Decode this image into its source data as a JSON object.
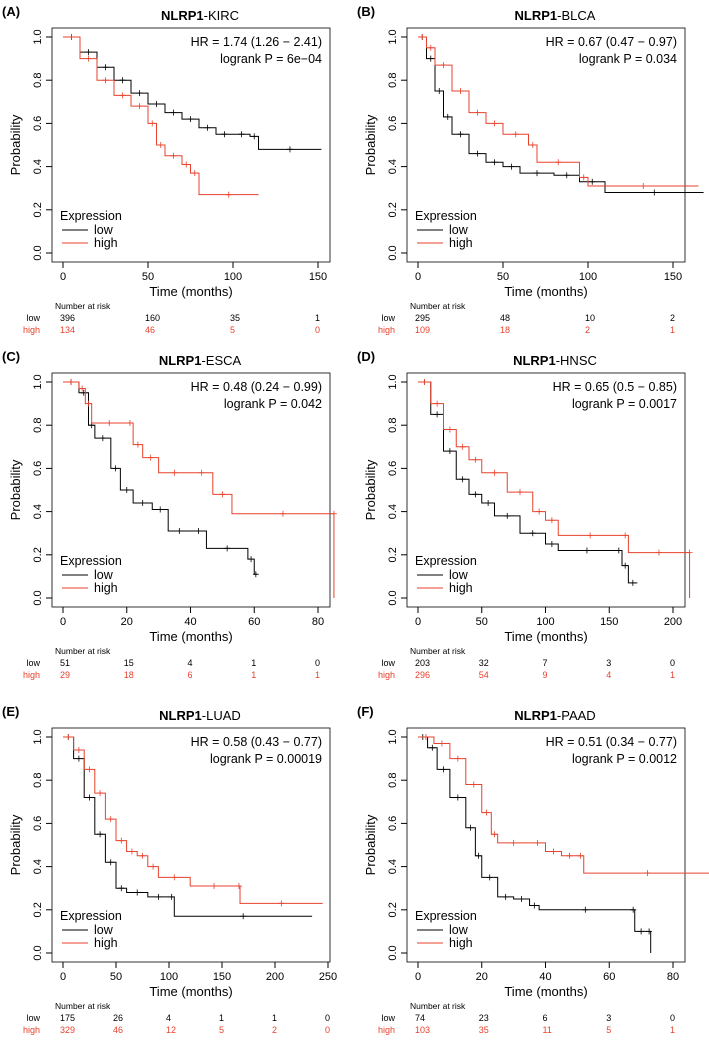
{
  "colors": {
    "low": "#000000",
    "high": "#e8412c"
  },
  "chart_data": [
    {
      "type": "line",
      "panel": "(A)",
      "title_gene": "NLRP1",
      "title_suffix": "-KIRC",
      "hr": "HR = 1.74 (1.26 − 2.41)",
      "p": "logrank P = 6e−04",
      "xlabel": "Time (months)",
      "ylabel": "Probability",
      "xlim": [
        0,
        150
      ],
      "ylim": [
        0,
        1
      ],
      "xticks": [
        0,
        50,
        100,
        150
      ],
      "yticks": [
        "0.0",
        "0.2",
        "0.4",
        "0.6",
        "0.8",
        "1.0"
      ],
      "legend_title": "Expression",
      "legend": [
        "low",
        "high"
      ],
      "risk_title": "Number at risk",
      "risk_times": [
        0,
        50,
        100,
        150
      ],
      "risk_low": [
        396,
        160,
        35,
        1
      ],
      "risk_high": [
        134,
        46,
        5,
        0
      ],
      "series": [
        {
          "name": "low",
          "x": [
            0,
            10,
            20,
            30,
            40,
            50,
            60,
            70,
            80,
            90,
            100,
            110,
            115,
            152
          ],
          "y": [
            1,
            0.93,
            0.86,
            0.8,
            0.74,
            0.69,
            0.65,
            0.62,
            0.58,
            0.55,
            0.55,
            0.54,
            0.48,
            0.48
          ]
        },
        {
          "name": "high",
          "x": [
            0,
            10,
            20,
            30,
            40,
            50,
            55,
            60,
            70,
            75,
            80,
            115
          ],
          "y": [
            1,
            0.9,
            0.8,
            0.73,
            0.68,
            0.6,
            0.5,
            0.45,
            0.41,
            0.37,
            0.27,
            0.27
          ]
        }
      ]
    },
    {
      "type": "line",
      "panel": "(B)",
      "title_gene": "NLRP1",
      "title_suffix": "-BLCA",
      "hr": "HR = 0.67 (0.47 − 0.97)",
      "p": "logrank P = 0.034",
      "xlabel": "Time (months)",
      "ylabel": "Probability",
      "xlim": [
        0,
        165
      ],
      "ylim": [
        0,
        1
      ],
      "xticks": [
        0,
        50,
        100,
        150
      ],
      "yticks": [
        "0.0",
        "0.2",
        "0.4",
        "0.6",
        "0.8",
        "1.0"
      ],
      "legend_title": "Expression",
      "legend": [
        "low",
        "high"
      ],
      "risk_title": "Number at risk",
      "risk_times": [
        0,
        50,
        100,
        150
      ],
      "risk_low": [
        295,
        48,
        10,
        2
      ],
      "risk_high": [
        109,
        18,
        2,
        1
      ],
      "series": [
        {
          "name": "low",
          "x": [
            0,
            5,
            10,
            15,
            20,
            30,
            40,
            50,
            60,
            80,
            95,
            110,
            168
          ],
          "y": [
            1,
            0.9,
            0.75,
            0.63,
            0.55,
            0.46,
            0.42,
            0.4,
            0.37,
            0.36,
            0.33,
            0.28,
            0.28
          ]
        },
        {
          "name": "high",
          "x": [
            0,
            5,
            10,
            20,
            30,
            40,
            50,
            65,
            70,
            95,
            100,
            165
          ],
          "y": [
            1,
            0.95,
            0.87,
            0.75,
            0.65,
            0.6,
            0.55,
            0.5,
            0.42,
            0.35,
            0.31,
            0.31
          ]
        }
      ]
    },
    {
      "type": "line",
      "panel": "(C)",
      "title_gene": "NLRP1",
      "title_suffix": "-ESCA",
      "hr": "HR = 0.48 (0.24 − 0.99)",
      "p": "logrank P = 0.042",
      "xlabel": "Time (months)",
      "ylabel": "Probability",
      "xlim": [
        0,
        85
      ],
      "ylim": [
        0,
        1
      ],
      "xticks": [
        0,
        20,
        40,
        60,
        80
      ],
      "yticks": [
        "0.0",
        "0.2",
        "0.4",
        "0.6",
        "0.8",
        "1.0"
      ],
      "legend_title": "Expression",
      "legend": [
        "low",
        "high"
      ],
      "risk_title": "Number at risk",
      "risk_times": [
        0,
        20,
        40,
        60,
        80
      ],
      "risk_low": [
        51,
        15,
        4,
        1,
        0
      ],
      "risk_high": [
        29,
        18,
        6,
        1,
        1
      ],
      "series": [
        {
          "name": "low",
          "x": [
            0,
            5,
            8,
            10,
            15,
            18,
            22,
            28,
            33,
            40,
            45,
            58,
            60,
            61
          ],
          "y": [
            1,
            0.95,
            0.8,
            0.74,
            0.6,
            0.5,
            0.44,
            0.41,
            0.31,
            0.31,
            0.23,
            0.18,
            0.11,
            0.11
          ]
        },
        {
          "name": "high",
          "x": [
            0,
            5,
            7,
            9,
            20,
            22,
            25,
            30,
            40,
            47,
            53,
            85,
            85
          ],
          "y": [
            1,
            0.97,
            0.9,
            0.81,
            0.81,
            0.71,
            0.65,
            0.58,
            0.58,
            0.48,
            0.39,
            0.39,
            0
          ]
        }
      ]
    },
    {
      "type": "line",
      "panel": "(D)",
      "title_gene": "NLRP1",
      "title_suffix": "-HNSC",
      "hr": "HR = 0.65 (0.5 − 0.85)",
      "p": "logrank P = 0.0017",
      "xlabel": "Time (months)",
      "ylabel": "Probability",
      "xlim": [
        0,
        215
      ],
      "ylim": [
        0,
        1
      ],
      "xticks": [
        0,
        50,
        100,
        150,
        200
      ],
      "yticks": [
        "0.0",
        "0.2",
        "0.4",
        "0.6",
        "0.8",
        "1.0"
      ],
      "legend_title": "Expression",
      "legend": [
        "low",
        "high"
      ],
      "risk_title": "Number at risk",
      "risk_times": [
        0,
        50,
        100,
        150,
        200
      ],
      "risk_low": [
        203,
        32,
        7,
        3,
        0
      ],
      "risk_high": [
        296,
        54,
        9,
        4,
        1
      ],
      "series": [
        {
          "name": "low",
          "x": [
            0,
            10,
            20,
            30,
            40,
            50,
            60,
            80,
            100,
            110,
            155,
            160,
            165,
            172
          ],
          "y": [
            1,
            0.85,
            0.68,
            0.55,
            0.48,
            0.44,
            0.38,
            0.3,
            0.25,
            0.22,
            0.22,
            0.15,
            0.07,
            0.07
          ]
        },
        {
          "name": "high",
          "x": [
            0,
            10,
            20,
            30,
            40,
            50,
            70,
            90,
            100,
            110,
            160,
            165,
            213,
            213
          ],
          "y": [
            1,
            0.9,
            0.78,
            0.7,
            0.64,
            0.58,
            0.49,
            0.4,
            0.36,
            0.29,
            0.29,
            0.21,
            0.21,
            0
          ]
        }
      ]
    },
    {
      "type": "line",
      "panel": "(E)",
      "title_gene": "NLRP1",
      "title_suffix": "-LUAD",
      "hr": "HR = 0.58 (0.43 − 0.77)",
      "p": "logrank P = 0.00019",
      "xlabel": "Time (months)",
      "ylabel": "Probability",
      "xlim": [
        0,
        245
      ],
      "ylim": [
        0,
        1
      ],
      "xticks": [
        0,
        50,
        100,
        150,
        200,
        250
      ],
      "yticks": [
        "0.0",
        "0.2",
        "0.4",
        "0.6",
        "0.8",
        "1.0"
      ],
      "legend_title": "Expression",
      "legend": [
        "low",
        "high"
      ],
      "risk_title": "Number at risk",
      "risk_times": [
        0,
        50,
        100,
        150,
        200,
        250
      ],
      "risk_low": [
        175,
        26,
        4,
        1,
        1,
        0
      ],
      "risk_high": [
        329,
        46,
        12,
        5,
        2,
        0
      ],
      "series": [
        {
          "name": "low",
          "x": [
            0,
            10,
            20,
            30,
            40,
            50,
            60,
            80,
            100,
            105,
            235
          ],
          "y": [
            1,
            0.9,
            0.72,
            0.55,
            0.42,
            0.3,
            0.28,
            0.26,
            0.26,
            0.17,
            0.17
          ]
        },
        {
          "name": "high",
          "x": [
            0,
            10,
            20,
            30,
            40,
            50,
            60,
            70,
            80,
            90,
            120,
            165,
            167,
            245
          ],
          "y": [
            1,
            0.94,
            0.85,
            0.74,
            0.62,
            0.52,
            0.47,
            0.45,
            0.4,
            0.35,
            0.31,
            0.31,
            0.23,
            0.23
          ]
        }
      ]
    },
    {
      "type": "line",
      "panel": "(F)",
      "title_gene": "NLRP1",
      "title_suffix": "-PAAD",
      "hr": "HR = 0.51 (0.34 − 0.77)",
      "p": "logrank P = 0.0012",
      "xlabel": "Time (months)",
      "ylabel": "Probability",
      "xlim": [
        0,
        92
      ],
      "ylim": [
        0,
        1
      ],
      "xticks": [
        0,
        20,
        40,
        60,
        80
      ],
      "yticks": [
        "0.0",
        "0.2",
        "0.4",
        "0.6",
        "0.8",
        "1.0"
      ],
      "legend_title": "Expression",
      "legend": [
        "low",
        "high"
      ],
      "risk_title": "Number at risk",
      "risk_times": [
        0,
        20,
        40,
        60,
        80
      ],
      "risk_low": [
        74,
        23,
        6,
        3,
        0
      ],
      "risk_high": [
        103,
        35,
        11,
        5,
        1
      ],
      "series": [
        {
          "name": "low",
          "x": [
            0,
            3,
            6,
            10,
            15,
            18,
            20,
            25,
            30,
            35,
            38,
            67,
            68,
            72,
            73
          ],
          "y": [
            1,
            0.95,
            0.85,
            0.72,
            0.58,
            0.45,
            0.35,
            0.26,
            0.25,
            0.22,
            0.2,
            0.2,
            0.1,
            0.1,
            0
          ]
        },
        {
          "name": "high",
          "x": [
            0,
            5,
            10,
            15,
            20,
            23,
            25,
            35,
            40,
            45,
            50,
            52,
            92
          ],
          "y": [
            1,
            0.97,
            0.9,
            0.78,
            0.65,
            0.55,
            0.51,
            0.51,
            0.47,
            0.45,
            0.45,
            0.37,
            0.37
          ]
        }
      ]
    }
  ]
}
